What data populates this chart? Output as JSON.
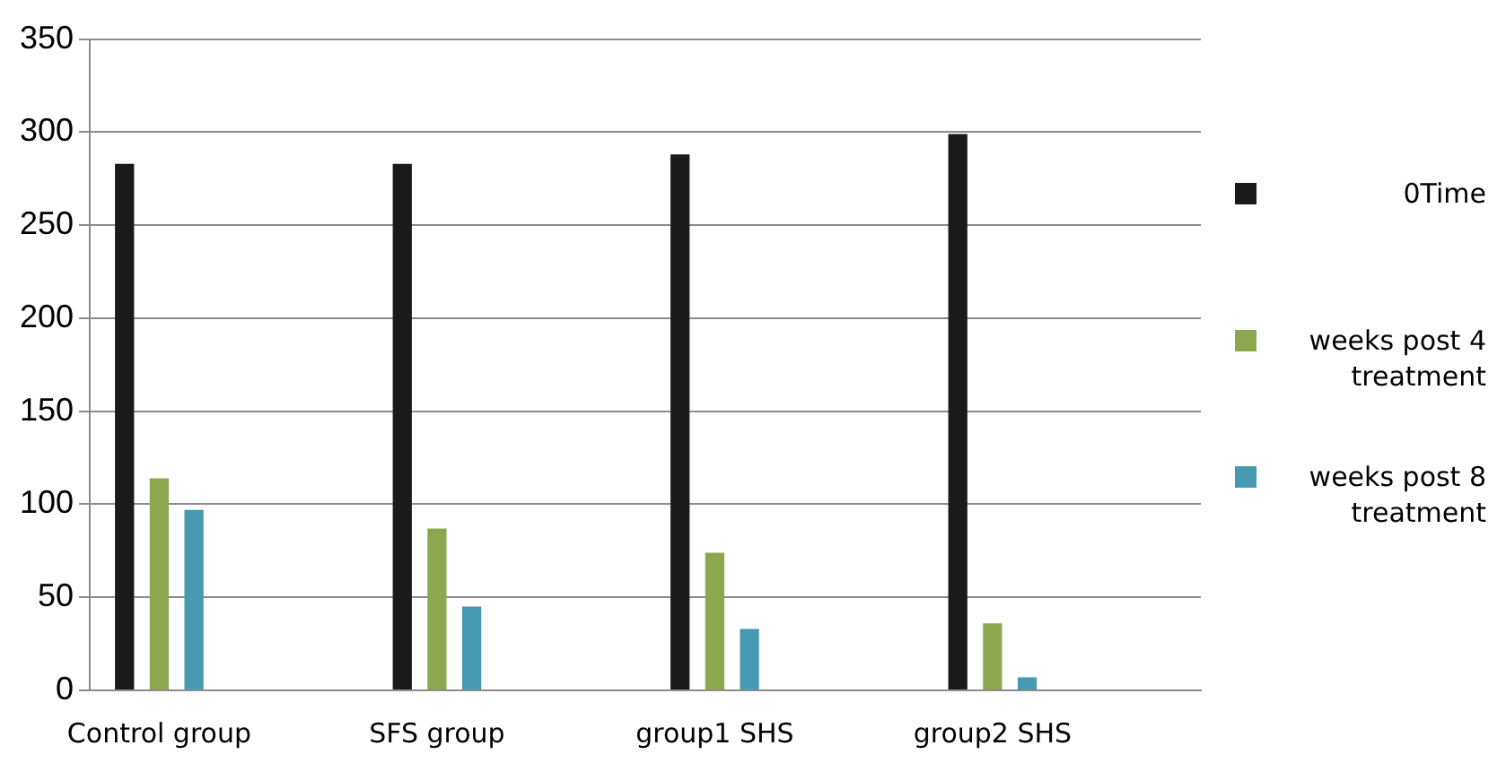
{
  "chart_data": {
    "type": "bar",
    "categories": [
      "Control group",
      null,
      "SFS group",
      null,
      "group1 SHS",
      null,
      "group2 SHS",
      null
    ],
    "series": [
      {
        "name": "0Time",
        "color": "#1a1a1a",
        "values": [
          283,
          null,
          283,
          null,
          288,
          null,
          299,
          null
        ]
      },
      {
        "name": "weeks post 4 treatment",
        "color": "#8ca84e",
        "values": [
          114,
          null,
          87,
          null,
          74,
          null,
          36,
          null
        ]
      },
      {
        "name": "weeks post 8 treatment",
        "color": "#4599b1",
        "values": [
          97,
          null,
          45,
          null,
          33,
          null,
          7,
          null
        ]
      }
    ],
    "ylim": [
      0,
      350
    ],
    "yticks": [
      0,
      50,
      100,
      150,
      200,
      250,
      300,
      350
    ],
    "grid": "y",
    "legend": "right"
  }
}
